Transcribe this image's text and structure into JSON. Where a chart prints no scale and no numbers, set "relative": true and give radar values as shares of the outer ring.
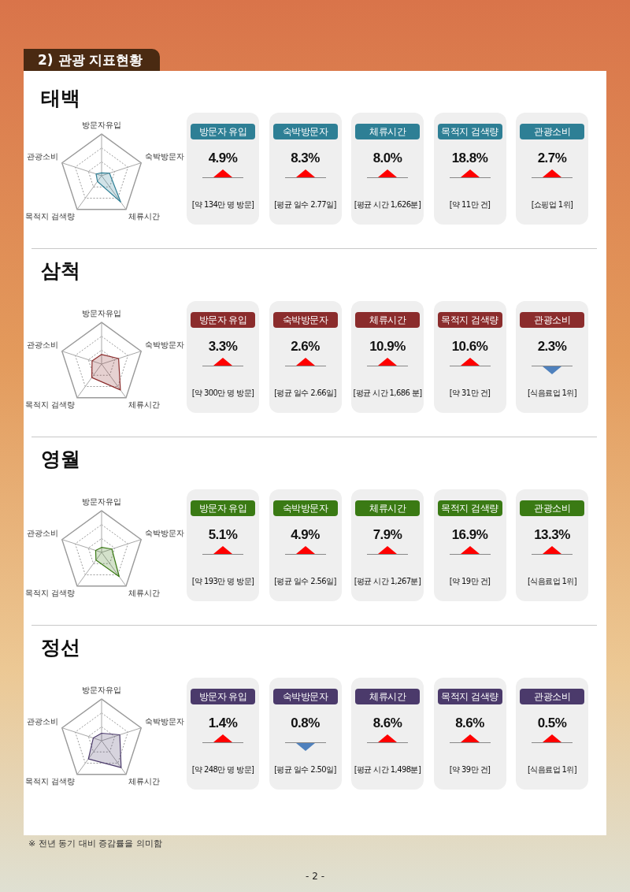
{
  "chart_data": [
    {
      "type": "radar",
      "title": "태백",
      "annotations": [
        "2) 관광 지표현황"
      ],
      "relative": true,
      "categories": [
        "방문자유입",
        "숙박방문자",
        "체류시간",
        "목적지 검색량",
        "관광소비"
      ],
      "series": [
        {
          "color": "#2e7f95",
          "values": [
            0.07,
            0.2,
            0.78,
            0.17,
            0.14
          ]
        }
      ]
    },
    {
      "type": "other",
      "categories": [
        "방문자 유입",
        "숙박방문자",
        "체류시간",
        "목적지 검색량",
        "관광소비"
      ],
      "series": [
        {
          "values": [
            4.9,
            8.3,
            8.0,
            18.8,
            2.7
          ],
          "value_labels": [
            "4.9%",
            "8.3%",
            "8.0%",
            "18.8%",
            "2.7%"
          ]
        }
      ],
      "annotations": [
        "[약 134만 명 방문]",
        "[평균 일수 2.77일]",
        "[평균 시간 1,626분]",
        "[약 11만 건]",
        "[쇼핑업 1위]"
      ]
    },
    {
      "type": "radar",
      "title": "삼척",
      "relative": true,
      "categories": [
        "방문자유입",
        "숙박방문자",
        "체류시간",
        "목적지 검색량",
        "관광소비"
      ],
      "series": [
        {
          "color": "#8b2c2c",
          "values": [
            0.23,
            0.43,
            0.77,
            0.4,
            0.24
          ]
        }
      ]
    },
    {
      "type": "other",
      "categories": [
        "방문자 유입",
        "숙박방문자",
        "체류시간",
        "목적지 검색량",
        "관광소비"
      ],
      "series": [
        {
          "values": [
            3.3,
            2.6,
            10.9,
            10.6,
            null
          ],
          "value_labels": [
            "3.3%",
            "2.6%",
            "10.9%",
            "10.6%",
            null
          ]
        },
        {
          "values": [
            null,
            null,
            null,
            null,
            2.3
          ],
          "value_labels": [
            null,
            null,
            null,
            null,
            "2.3%"
          ]
        }
      ],
      "annotations": [
        "[약 300만 명 방문]",
        "[평균 일수 2.66일]",
        "[평균 시간 1,686 분]",
        "[약 31만 건]",
        "[식음료업 1위]"
      ]
    },
    {
      "type": "radar",
      "title": "영월",
      "relative": true,
      "categories": [
        "방문자유입",
        "숙박방문자",
        "체류시간",
        "목적지 검색량",
        "관광소비"
      ],
      "series": [
        {
          "color": "#3a7a14",
          "values": [
            0.12,
            0.26,
            0.72,
            0.23,
            0.15
          ]
        }
      ]
    },
    {
      "type": "other",
      "categories": [
        "방문자 유입",
        "숙박방문자",
        "체류시간",
        "목적지 검색량",
        "관광소비"
      ],
      "series": [
        {
          "values": [
            5.1,
            4.9,
            7.9,
            16.9,
            13.3
          ],
          "value_labels": [
            "5.1%",
            "4.9%",
            "7.9%",
            "16.9%",
            "13.3%"
          ]
        }
      ],
      "annotations": [
        "[약 193만 명 방문]",
        "[평균 일수 2.56일]",
        "[평균 시간 1,267분]",
        "[약 19만 건]",
        "[식음료업 1위]"
      ]
    },
    {
      "type": "radar",
      "title": "정선",
      "annotations": [
        "※ 전년 동기 대비 증감률을 의미함",
        "- 2 -"
      ],
      "relative": true,
      "categories": [
        "방문자유입",
        "숙박방문자",
        "체류시간",
        "목적지 검색량",
        "관광소비"
      ],
      "series": [
        {
          "color": "#4b3a6b",
          "values": [
            0.18,
            0.46,
            0.8,
            0.54,
            0.21
          ]
        }
      ]
    },
    {
      "type": "other",
      "categories": [
        "방문자 유입",
        "숙박방문자",
        "체류시간",
        "목적지 검색량",
        "관광소비"
      ],
      "series": [
        {
          "values": [
            1.4,
            null,
            8.6,
            8.6,
            0.5
          ],
          "value_labels": [
            "1.4%",
            null,
            "8.6%",
            "8.6%",
            "0.5%"
          ]
        },
        {
          "values": [
            null,
            0.8,
            null,
            null,
            null
          ],
          "value_labels": [
            null,
            "0.8%",
            null,
            null,
            null
          ]
        }
      ],
      "annotations": [
        "[약 248만 명 방문]",
        "[평균 일수 2.50일]",
        "[평균 시간 1,498분]",
        "[약 39만 건]",
        "[식음료업 1위]"
      ]
    }
  ]
}
